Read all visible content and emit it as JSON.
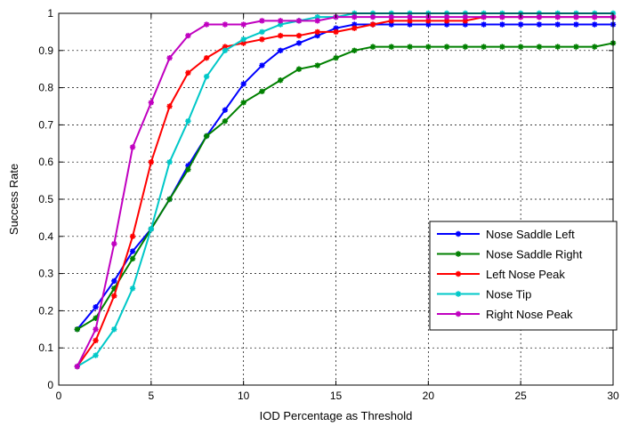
{
  "chart_data": {
    "type": "line",
    "title": "",
    "xlabel": "IOD Percentage as Threshold",
    "ylabel": "Success Rate",
    "xlim": [
      0,
      30
    ],
    "ylim": [
      0,
      1
    ],
    "xticks": [
      0,
      5,
      10,
      15,
      20,
      25,
      30
    ],
    "yticks": [
      0,
      0.1,
      0.2,
      0.3,
      0.4,
      0.5,
      0.6,
      0.7,
      0.8,
      0.9,
      1
    ],
    "xtick_labels": [
      "0",
      "5",
      "10",
      "15",
      "20",
      "25",
      "30"
    ],
    "ytick_labels": [
      "0",
      "0.1",
      "0.2",
      "0.3",
      "0.4",
      "0.5",
      "0.6",
      "0.7",
      "0.8",
      "0.9",
      "1"
    ],
    "grid": true,
    "legend_position": "lower-right",
    "x": [
      1,
      2,
      3,
      4,
      5,
      6,
      7,
      8,
      9,
      10,
      11,
      12,
      13,
      14,
      15,
      16,
      17,
      18,
      19,
      20,
      21,
      22,
      23,
      24,
      25,
      26,
      27,
      28,
      29,
      30
    ],
    "series": [
      {
        "name": "Nose Saddle Left",
        "color": "#0000ff",
        "marker": "asterisk",
        "values": [
          0.15,
          0.21,
          0.28,
          0.36,
          0.42,
          0.5,
          0.59,
          0.67,
          0.74,
          0.81,
          0.86,
          0.9,
          0.92,
          0.94,
          0.96,
          0.97,
          0.97,
          0.97,
          0.97,
          0.97,
          0.97,
          0.97,
          0.97,
          0.97,
          0.97,
          0.97,
          0.97,
          0.97,
          0.97,
          0.97
        ]
      },
      {
        "name": "Nose Saddle Right",
        "color": "#008000",
        "marker": "asterisk",
        "values": [
          0.15,
          0.18,
          0.26,
          0.34,
          0.42,
          0.5,
          0.58,
          0.67,
          0.71,
          0.76,
          0.79,
          0.82,
          0.85,
          0.86,
          0.88,
          0.9,
          0.91,
          0.91,
          0.91,
          0.91,
          0.91,
          0.91,
          0.91,
          0.91,
          0.91,
          0.91,
          0.91,
          0.91,
          0.91,
          0.92
        ]
      },
      {
        "name": "Left Nose Peak",
        "color": "#ff0000",
        "marker": "asterisk",
        "values": [
          0.05,
          0.12,
          0.24,
          0.4,
          0.6,
          0.75,
          0.84,
          0.88,
          0.91,
          0.92,
          0.93,
          0.94,
          0.94,
          0.95,
          0.95,
          0.96,
          0.97,
          0.98,
          0.98,
          0.98,
          0.98,
          0.98,
          0.99,
          0.99,
          0.99,
          0.99,
          0.99,
          0.99,
          0.99,
          0.99
        ]
      },
      {
        "name": "Nose Tip",
        "color": "#00c8c8",
        "marker": "asterisk",
        "values": [
          0.05,
          0.08,
          0.15,
          0.26,
          0.42,
          0.6,
          0.71,
          0.83,
          0.9,
          0.93,
          0.95,
          0.97,
          0.98,
          0.99,
          0.99,
          1.0,
          1.0,
          1.0,
          1.0,
          1.0,
          1.0,
          1.0,
          1.0,
          1.0,
          1.0,
          1.0,
          1.0,
          1.0,
          1.0,
          1.0
        ]
      },
      {
        "name": "Right Nose Peak",
        "color": "#c000c0",
        "marker": "asterisk",
        "values": [
          0.05,
          0.15,
          0.38,
          0.64,
          0.76,
          0.88,
          0.94,
          0.97,
          0.97,
          0.97,
          0.98,
          0.98,
          0.98,
          0.98,
          0.99,
          0.99,
          0.99,
          0.99,
          0.99,
          0.99,
          0.99,
          0.99,
          0.99,
          0.99,
          0.99,
          0.99,
          0.99,
          0.99,
          0.99,
          0.99
        ]
      }
    ]
  }
}
